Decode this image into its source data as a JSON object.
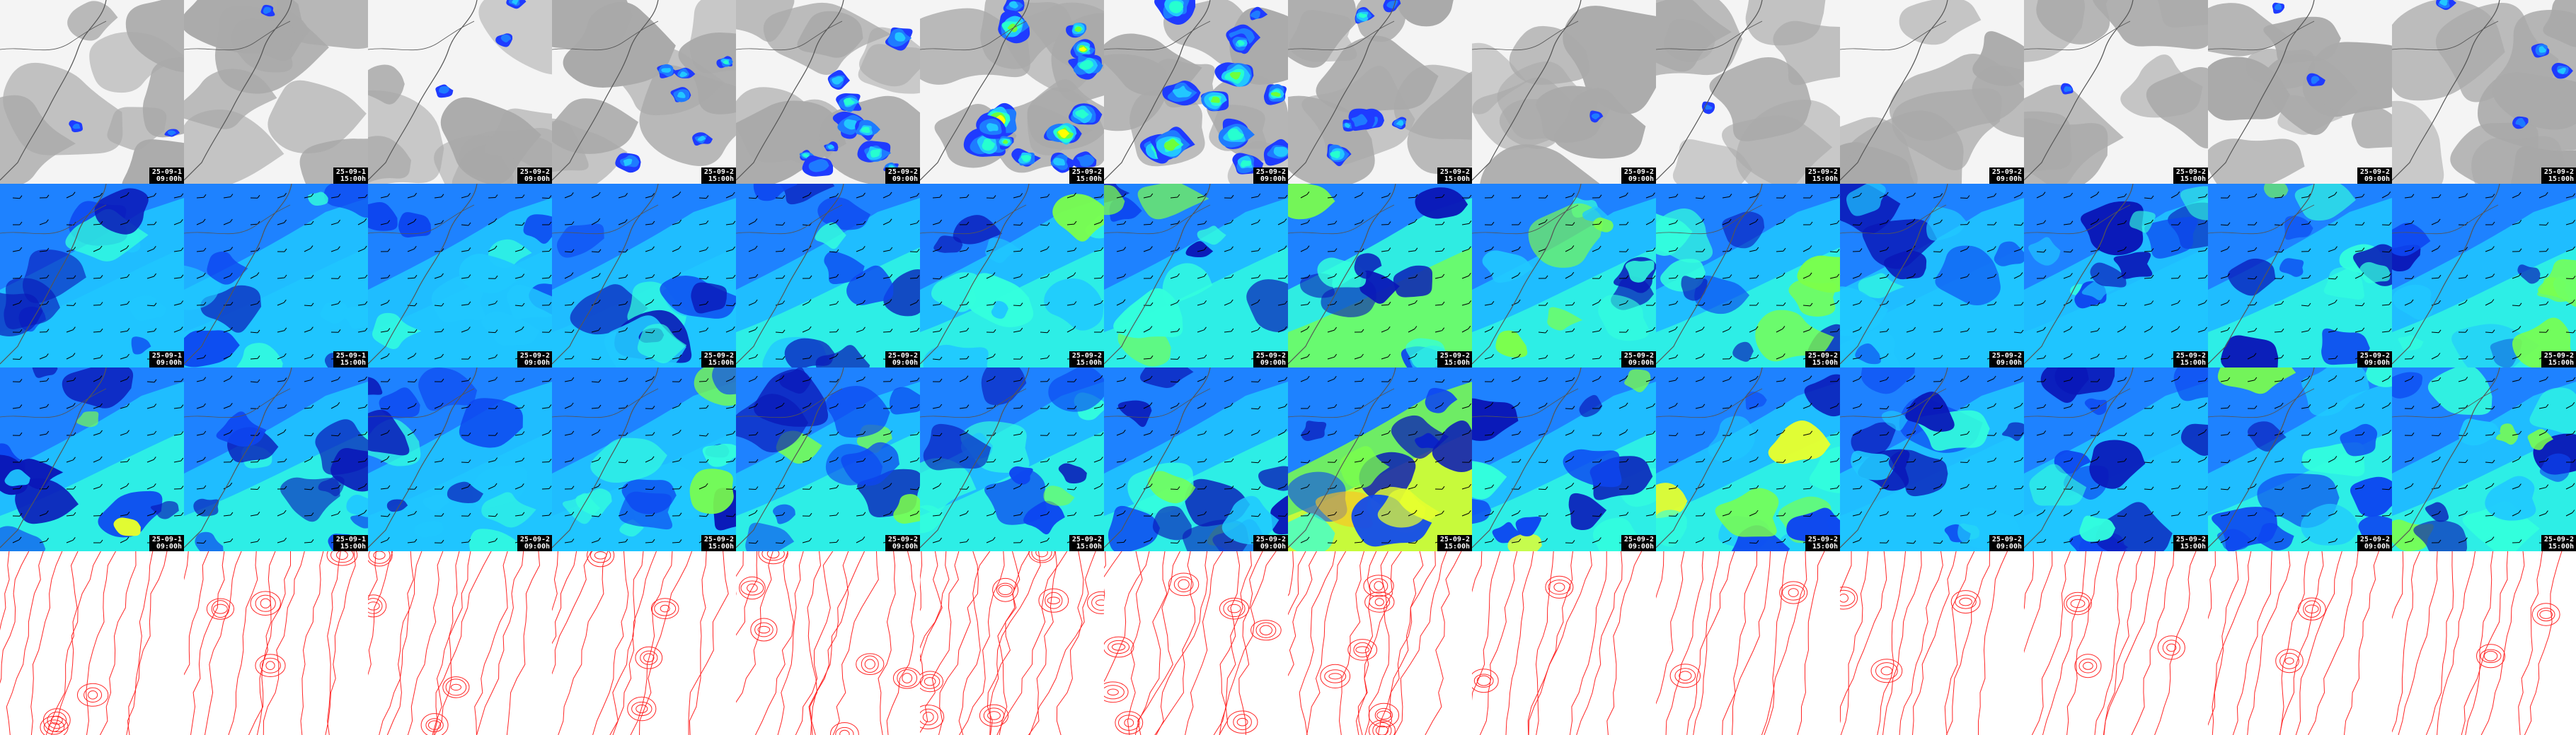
{
  "rows": [
    {
      "id": "cloud-precip",
      "name": "row-cloud-precip",
      "type": "cloud"
    },
    {
      "id": "wind-upper",
      "name": "row-wind-upper",
      "type": "wind1"
    },
    {
      "id": "wind-lower",
      "name": "row-wind-lower",
      "type": "wind2"
    },
    {
      "id": "pressure-contours",
      "name": "row-pressure-contours",
      "type": "contour"
    }
  ],
  "columns": [
    {
      "date": "25-09-1",
      "time": "09:00h"
    },
    {
      "date": "25-09-1",
      "time": "15:00h"
    },
    {
      "date": "25-09-2",
      "time": "09:00h"
    },
    {
      "date": "25-09-2",
      "time": "15:00h"
    },
    {
      "date": "25-09-2",
      "time": "09:00h"
    },
    {
      "date": "25-09-2",
      "time": "15:00h"
    },
    {
      "date": "25-09-2",
      "time": "09:00h"
    },
    {
      "date": "25-09-2",
      "time": "15:00h"
    },
    {
      "date": "25-09-2",
      "time": "09:00h"
    },
    {
      "date": "25-09-2",
      "time": "15:00h"
    },
    {
      "date": "25-09-2",
      "time": "09:00h"
    },
    {
      "date": "25-09-2",
      "time": "15:00h"
    },
    {
      "date": "25-09-2",
      "time": "09:00h"
    },
    {
      "date": "25-09-2",
      "time": "15:00h"
    }
  ],
  "colors": {
    "cloud_light": "#f4f4f4",
    "cloud_gray": "#a9a9a9",
    "precip": [
      "#1f3bff",
      "#1e7bff",
      "#22c7ff",
      "#26ffd0",
      "#6eff3a",
      "#ffff00",
      "#ff2400"
    ],
    "wind": [
      "#0a18b8",
      "#0d46f0",
      "#1e82ff",
      "#20c8ff",
      "#33ffdd",
      "#7cff4a",
      "#e6ff2e",
      "#ffbf20",
      "#ff3b10"
    ],
    "coast": "#555555",
    "contour": "#ff2626",
    "stamp_bg": "#000000",
    "stamp_fg": "#ffffff"
  },
  "intensity": {
    "cloud": [
      0.1,
      0.05,
      0.15,
      0.35,
      0.55,
      0.75,
      0.7,
      0.4,
      0.05,
      0.03,
      0.02,
      0.03,
      0.1,
      0.2
    ],
    "wind1": [
      0.35,
      0.3,
      0.25,
      0.25,
      0.45,
      0.4,
      0.5,
      0.75,
      0.4,
      0.4,
      0.2,
      0.25,
      0.4,
      0.45
    ],
    "wind2": [
      0.55,
      0.45,
      0.3,
      0.35,
      0.55,
      0.55,
      0.6,
      0.9,
      0.6,
      0.6,
      0.3,
      0.35,
      0.45,
      0.55
    ],
    "contour": [
      0.3,
      0.35,
      0.35,
      0.4,
      0.55,
      0.7,
      0.65,
      0.6,
      0.2,
      0.2,
      0.25,
      0.25,
      0.2,
      0.2
    ]
  }
}
